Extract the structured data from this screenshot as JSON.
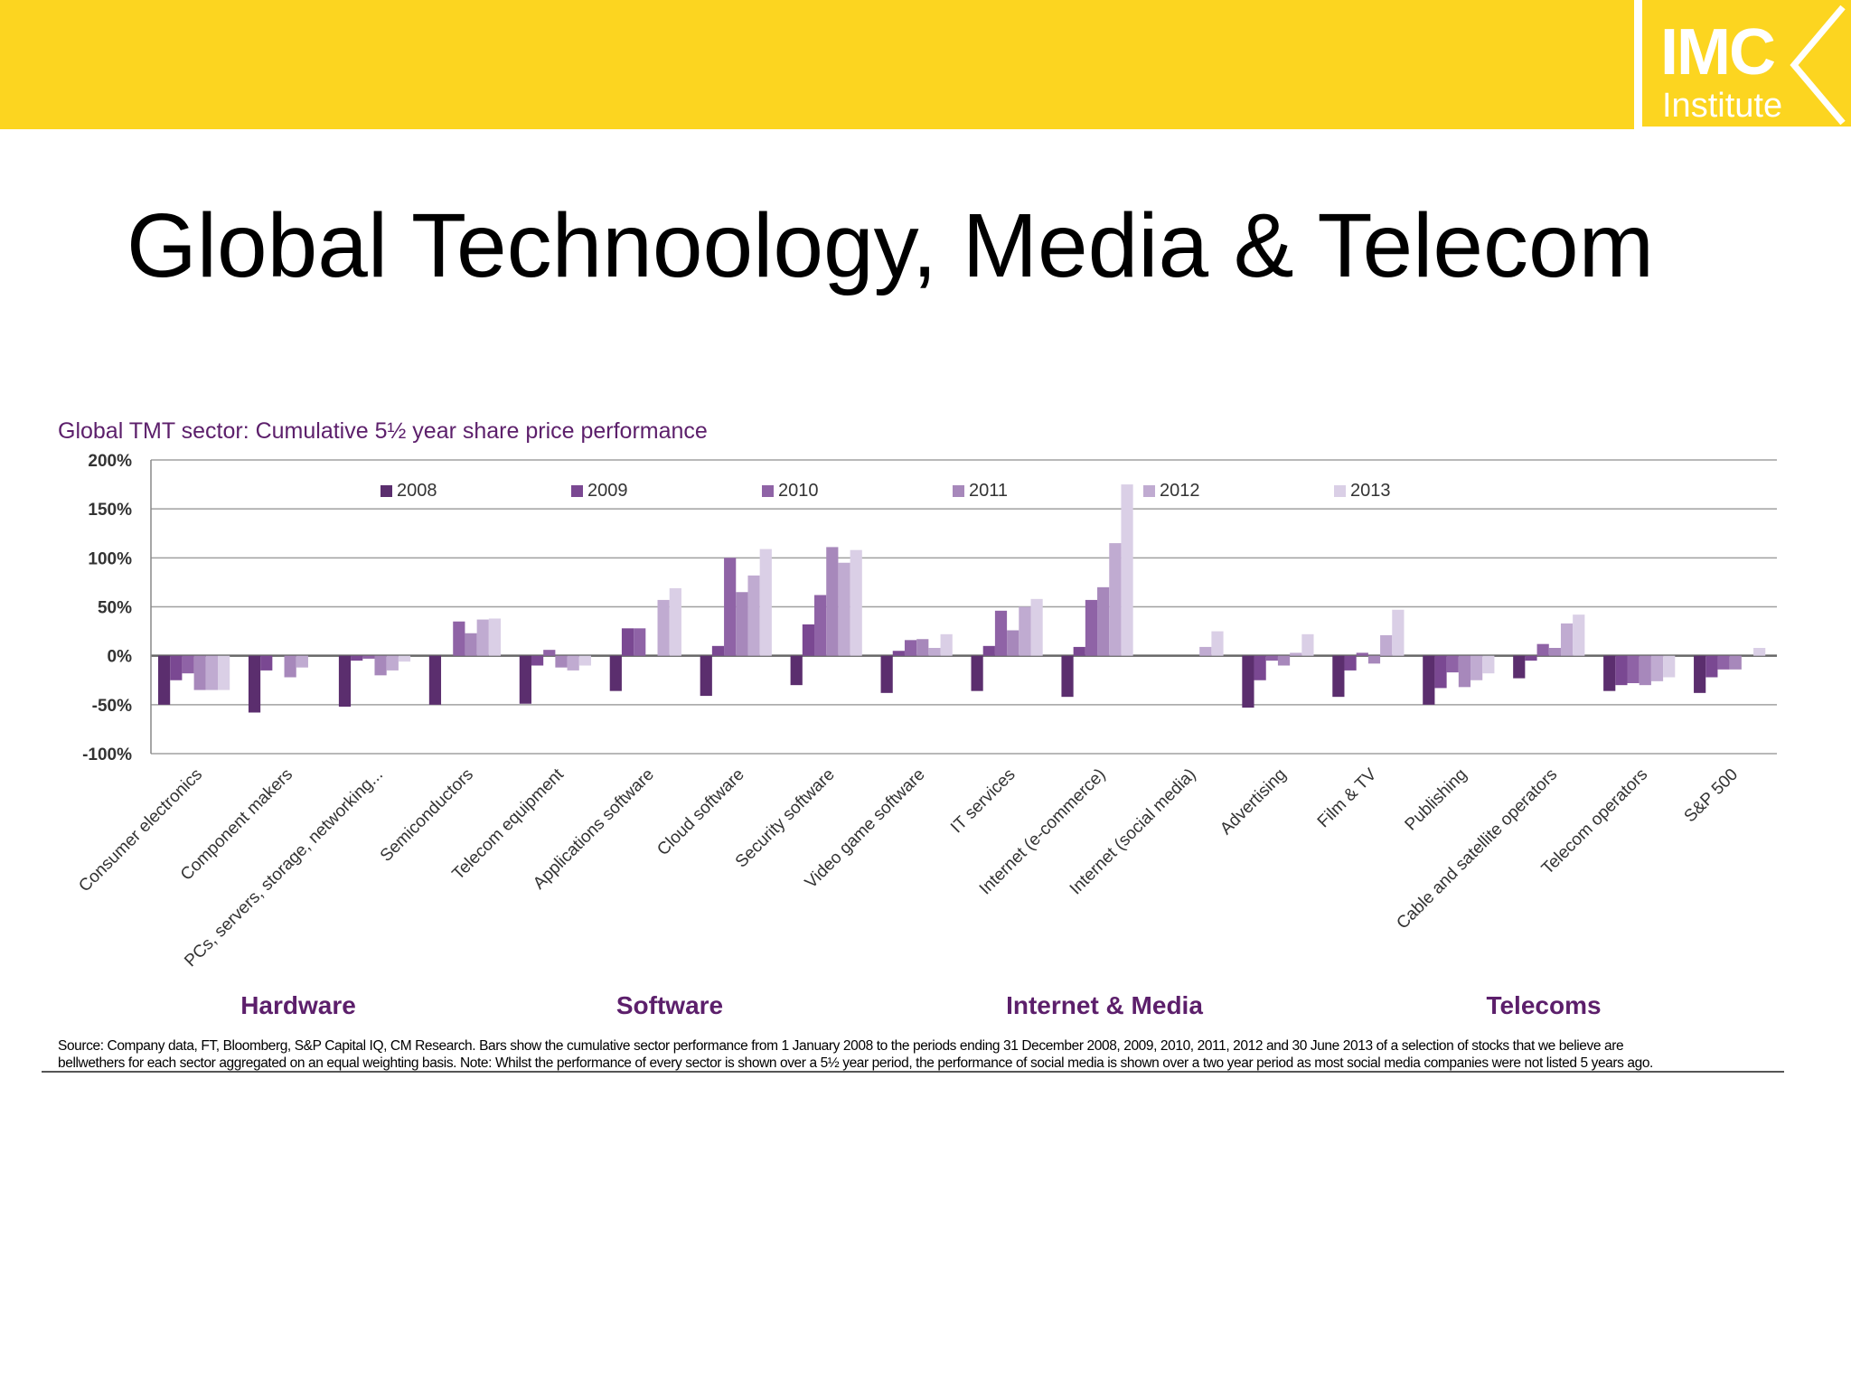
{
  "logo": {
    "main": "IMC",
    "sub": "Institute"
  },
  "slide_title": "Global Technoology, Media & Telecom",
  "chart_data": {
    "type": "bar",
    "title": "Global TMT sector: Cumulative 5½ year share price performance",
    "yticks": [
      "200%",
      "150%",
      "100%",
      "50%",
      "0%",
      "-50%",
      "-100%"
    ],
    "ylim": [
      -100,
      200
    ],
    "grid": true,
    "legend_position": "top",
    "series_colors": [
      "#5b2e6e",
      "#7a4892",
      "#8f63a6",
      "#a788bb",
      "#c0abd1",
      "#dacfe6"
    ],
    "categories": [
      "Consumer electronics",
      "Component makers",
      "PCs, servers, storage, networking...",
      "Semiconductors",
      "Telecom equipment",
      "Applications software",
      "Cloud software",
      "Security software",
      "Video game software",
      "IT services",
      "Internet (e-commerce)",
      "Internet (social media)",
      "Advertising",
      "Film & TV",
      "Publishing",
      "Cable and satellite operators",
      "Telecom operators",
      "S&P 500"
    ],
    "series": [
      {
        "name": "2008",
        "values": [
          -50,
          -58,
          -52,
          -50,
          -49,
          -36,
          -41,
          -30,
          -38,
          -36,
          -42,
          0,
          -53,
          -42,
          -50,
          -23,
          -36,
          -38
        ]
      },
      {
        "name": "2009",
        "values": [
          -25,
          -15,
          -5,
          0,
          -10,
          28,
          10,
          32,
          5,
          10,
          9,
          0,
          -25,
          -15,
          -33,
          -5,
          -30,
          -22
        ]
      },
      {
        "name": "2010",
        "values": [
          -18,
          0,
          -3,
          35,
          6,
          28,
          100,
          62,
          16,
          46,
          57,
          0,
          -5,
          3,
          -17,
          12,
          -28,
          -14
        ]
      },
      {
        "name": "2011",
        "values": [
          -35,
          -22,
          -20,
          23,
          -12,
          0,
          65,
          111,
          17,
          26,
          70,
          0,
          -10,
          -8,
          -32,
          8,
          -30,
          -14
        ]
      },
      {
        "name": "2012",
        "values": [
          -35,
          -12,
          -15,
          37,
          -15,
          57,
          82,
          95,
          8,
          50,
          115,
          9,
          3,
          21,
          -25,
          33,
          -26,
          0
        ]
      },
      {
        "name": "2013",
        "values": [
          -35,
          0,
          -6,
          38,
          -10,
          69,
          109,
          108,
          22,
          58,
          175,
          25,
          22,
          47,
          -18,
          42,
          -22,
          8
        ]
      }
    ],
    "groups": [
      {
        "label": "Hardware"
      },
      {
        "label": "Software"
      },
      {
        "label": "Internet & Media"
      },
      {
        "label": "Telecoms"
      }
    ]
  },
  "source": {
    "line1": "Source:  Company data, FT, Bloomberg, S&P Capital IQ, CM Research. Bars show the cumulative sector performance from 1 January 2008 to the periods ending 31 December 2008, 2009, 2010, 2011, 2012 and 30 June 2013 of a selection of stocks that we believe are",
    "line2": "bellwethers for each sector aggregated on an equal weighting basis. Note: Whilst the performance of every sector is shown over a 5½ year period, the performance of social media is shown over a two year period as most social media companies were not listed 5 years ago."
  }
}
